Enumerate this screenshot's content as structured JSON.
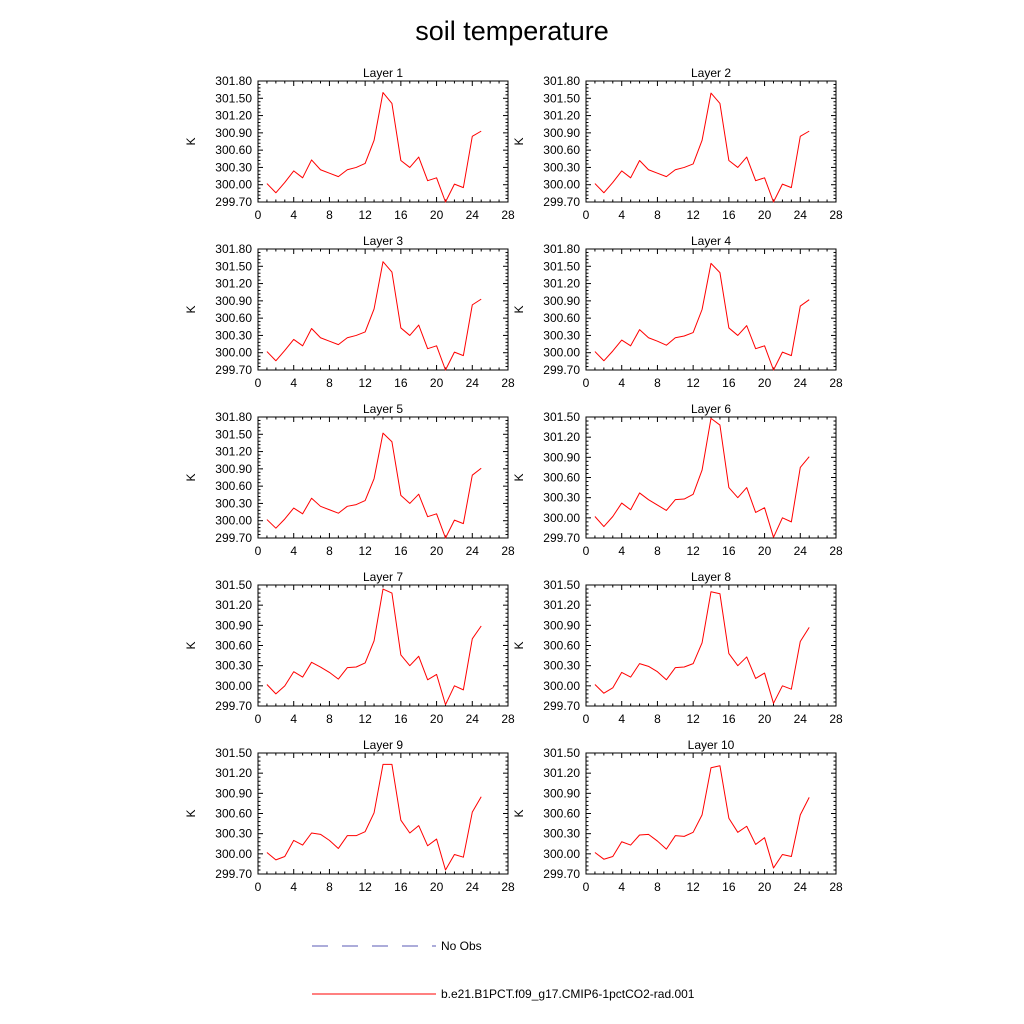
{
  "title": "soil temperature",
  "legend": [
    {
      "label": "No Obs",
      "color": "#5a5ab4",
      "dash": true
    },
    {
      "label": "b.e21.B1PCT.f09_g17.CMIP6-1pctCO2-rad.001",
      "color": "#ff0000",
      "dash": false
    }
  ],
  "chart_data": [
    {
      "type": "line",
      "title": "Layer 1",
      "ylabel": "K",
      "xlim": [
        0,
        28
      ],
      "ylim": [
        299.7,
        301.8
      ],
      "xticks": [
        "0",
        "4",
        "8",
        "12",
        "16",
        "20",
        "24",
        "28"
      ],
      "yticks": [
        "299.70",
        "300.00",
        "300.30",
        "300.60",
        "300.90",
        "301.20",
        "301.50",
        "301.80"
      ],
      "x": [
        1,
        2,
        3,
        4,
        5,
        6,
        7,
        8,
        9,
        10,
        11,
        12,
        13,
        14,
        15,
        16,
        17,
        18,
        19,
        20,
        21,
        22,
        23,
        24,
        25
      ],
      "series": [
        {
          "name": "b.e21.B1PCT.f09_g17.CMIP6-1pctCO2-rad.001",
          "values": [
            300.02,
            299.86,
            300.04,
            300.24,
            300.12,
            300.43,
            300.26,
            300.2,
            300.14,
            300.26,
            300.3,
            300.37,
            300.77,
            301.6,
            301.41,
            300.42,
            300.3,
            300.48,
            300.07,
            300.12,
            299.7,
            300.01,
            299.95,
            300.84,
            300.93
          ]
        }
      ]
    },
    {
      "type": "line",
      "title": "Layer 2",
      "ylabel": "K",
      "xlim": [
        0,
        28
      ],
      "ylim": [
        299.7,
        301.8
      ],
      "xticks": [
        "0",
        "4",
        "8",
        "12",
        "16",
        "20",
        "24",
        "28"
      ],
      "yticks": [
        "299.70",
        "300.00",
        "300.30",
        "300.60",
        "300.90",
        "301.20",
        "301.50",
        "301.80"
      ],
      "x": [
        1,
        2,
        3,
        4,
        5,
        6,
        7,
        8,
        9,
        10,
        11,
        12,
        13,
        14,
        15,
        16,
        17,
        18,
        19,
        20,
        21,
        22,
        23,
        24,
        25
      ],
      "series": [
        {
          "name": "b.e21.B1PCT.f09_g17.CMIP6-1pctCO2-rad.001",
          "values": [
            300.02,
            299.86,
            300.04,
            300.24,
            300.12,
            300.42,
            300.26,
            300.2,
            300.14,
            300.26,
            300.3,
            300.36,
            300.77,
            301.59,
            301.41,
            300.42,
            300.3,
            300.48,
            300.07,
            300.12,
            299.7,
            300.01,
            299.95,
            300.84,
            300.93
          ]
        }
      ]
    },
    {
      "type": "line",
      "title": "Layer 3",
      "ylabel": "K",
      "xlim": [
        0,
        28
      ],
      "ylim": [
        299.7,
        301.8
      ],
      "xticks": [
        "0",
        "4",
        "8",
        "12",
        "16",
        "20",
        "24",
        "28"
      ],
      "yticks": [
        "299.70",
        "300.00",
        "300.30",
        "300.60",
        "300.90",
        "301.20",
        "301.50",
        "301.80"
      ],
      "x": [
        1,
        2,
        3,
        4,
        5,
        6,
        7,
        8,
        9,
        10,
        11,
        12,
        13,
        14,
        15,
        16,
        17,
        18,
        19,
        20,
        21,
        22,
        23,
        24,
        25
      ],
      "series": [
        {
          "name": "b.e21.B1PCT.f09_g17.CMIP6-1pctCO2-rad.001",
          "values": [
            300.02,
            299.86,
            300.04,
            300.23,
            300.12,
            300.42,
            300.26,
            300.2,
            300.14,
            300.26,
            300.3,
            300.36,
            300.76,
            301.58,
            301.4,
            300.43,
            300.3,
            300.48,
            300.07,
            300.12,
            299.7,
            300.01,
            299.95,
            300.83,
            300.93
          ]
        }
      ]
    },
    {
      "type": "line",
      "title": "Layer 4",
      "ylabel": "K",
      "xlim": [
        0,
        28
      ],
      "ylim": [
        299.7,
        301.8
      ],
      "xticks": [
        "0",
        "4",
        "8",
        "12",
        "16",
        "20",
        "24",
        "28"
      ],
      "yticks": [
        "299.70",
        "300.00",
        "300.30",
        "300.60",
        "300.90",
        "301.20",
        "301.50",
        "301.80"
      ],
      "x": [
        1,
        2,
        3,
        4,
        5,
        6,
        7,
        8,
        9,
        10,
        11,
        12,
        13,
        14,
        15,
        16,
        17,
        18,
        19,
        20,
        21,
        22,
        23,
        24,
        25
      ],
      "series": [
        {
          "name": "b.e21.B1PCT.f09_g17.CMIP6-1pctCO2-rad.001",
          "values": [
            300.02,
            299.86,
            300.03,
            300.22,
            300.12,
            300.4,
            300.26,
            300.2,
            300.13,
            300.26,
            300.29,
            300.35,
            300.75,
            301.55,
            301.39,
            300.43,
            300.3,
            300.47,
            300.07,
            300.12,
            299.7,
            300.01,
            299.95,
            300.81,
            300.92
          ]
        }
      ]
    },
    {
      "type": "line",
      "title": "Layer 5",
      "ylabel": "K",
      "xlim": [
        0,
        28
      ],
      "ylim": [
        299.7,
        301.8
      ],
      "xticks": [
        "0",
        "4",
        "8",
        "12",
        "16",
        "20",
        "24",
        "28"
      ],
      "yticks": [
        "299.70",
        "300.00",
        "300.30",
        "300.60",
        "300.90",
        "301.20",
        "301.50",
        "301.80"
      ],
      "x": [
        1,
        2,
        3,
        4,
        5,
        6,
        7,
        8,
        9,
        10,
        11,
        12,
        13,
        14,
        15,
        16,
        17,
        18,
        19,
        20,
        21,
        22,
        23,
        24,
        25
      ],
      "series": [
        {
          "name": "b.e21.B1PCT.f09_g17.CMIP6-1pctCO2-rad.001",
          "values": [
            300.02,
            299.87,
            300.03,
            300.22,
            300.12,
            300.39,
            300.25,
            300.19,
            300.13,
            300.25,
            300.28,
            300.35,
            300.73,
            301.52,
            301.37,
            300.44,
            300.3,
            300.46,
            300.07,
            300.12,
            299.7,
            300.01,
            299.95,
            300.79,
            300.91
          ]
        }
      ]
    },
    {
      "type": "line",
      "title": "Layer 6",
      "ylabel": "K",
      "xlim": [
        0,
        28
      ],
      "ylim": [
        299.7,
        301.5
      ],
      "xticks": [
        "0",
        "4",
        "8",
        "12",
        "16",
        "20",
        "24",
        "28"
      ],
      "yticks": [
        "299.70",
        "300.00",
        "300.30",
        "300.60",
        "300.90",
        "301.20",
        "301.50"
      ],
      "x": [
        1,
        2,
        3,
        4,
        5,
        6,
        7,
        8,
        9,
        10,
        11,
        12,
        13,
        14,
        15,
        16,
        17,
        18,
        19,
        20,
        21,
        22,
        23,
        24,
        25
      ],
      "series": [
        {
          "name": "b.e21.B1PCT.f09_g17.CMIP6-1pctCO2-rad.001",
          "values": [
            300.02,
            299.87,
            300.02,
            300.22,
            300.12,
            300.37,
            300.27,
            300.19,
            300.11,
            300.27,
            300.28,
            300.35,
            300.71,
            301.48,
            301.38,
            300.45,
            300.3,
            300.45,
            300.08,
            300.15,
            299.71,
            300.0,
            299.94,
            300.75,
            300.91
          ]
        }
      ]
    },
    {
      "type": "line",
      "title": "Layer 7",
      "ylabel": "K",
      "xlim": [
        0,
        28
      ],
      "ylim": [
        299.7,
        301.5
      ],
      "xticks": [
        "0",
        "4",
        "8",
        "12",
        "16",
        "20",
        "24",
        "28"
      ],
      "yticks": [
        "299.70",
        "300.00",
        "300.30",
        "300.60",
        "300.90",
        "301.20",
        "301.50"
      ],
      "x": [
        1,
        2,
        3,
        4,
        5,
        6,
        7,
        8,
        9,
        10,
        11,
        12,
        13,
        14,
        15,
        16,
        17,
        18,
        19,
        20,
        21,
        22,
        23,
        24,
        25
      ],
      "series": [
        {
          "name": "b.e21.B1PCT.f09_g17.CMIP6-1pctCO2-rad.001",
          "values": [
            300.02,
            299.88,
            300.0,
            300.21,
            300.13,
            300.35,
            300.28,
            300.2,
            300.1,
            300.27,
            300.28,
            300.34,
            300.67,
            301.44,
            301.38,
            300.46,
            300.3,
            300.44,
            300.09,
            300.17,
            299.72,
            300.0,
            299.94,
            300.7,
            300.89
          ]
        }
      ]
    },
    {
      "type": "line",
      "title": "Layer 8",
      "ylabel": "K",
      "xlim": [
        0,
        28
      ],
      "ylim": [
        299.7,
        301.5
      ],
      "xticks": [
        "0",
        "4",
        "8",
        "12",
        "16",
        "20",
        "24",
        "28"
      ],
      "yticks": [
        "299.70",
        "300.00",
        "300.30",
        "300.60",
        "300.90",
        "301.20",
        "301.50"
      ],
      "x": [
        1,
        2,
        3,
        4,
        5,
        6,
        7,
        8,
        9,
        10,
        11,
        12,
        13,
        14,
        15,
        16,
        17,
        18,
        19,
        20,
        21,
        22,
        23,
        24,
        25
      ],
      "series": [
        {
          "name": "b.e21.B1PCT.f09_g17.CMIP6-1pctCO2-rad.001",
          "values": [
            300.02,
            299.89,
            299.97,
            300.2,
            300.13,
            300.33,
            300.29,
            300.21,
            300.09,
            300.27,
            300.28,
            300.33,
            300.64,
            301.4,
            301.37,
            300.48,
            300.3,
            300.43,
            300.11,
            300.19,
            299.74,
            300.0,
            299.95,
            300.66,
            300.87
          ]
        }
      ]
    },
    {
      "type": "line",
      "title": "Layer 9",
      "ylabel": "K",
      "xlim": [
        0,
        28
      ],
      "ylim": [
        299.7,
        301.5
      ],
      "xticks": [
        "0",
        "4",
        "8",
        "12",
        "16",
        "20",
        "24",
        "28"
      ],
      "yticks": [
        "299.70",
        "300.00",
        "300.30",
        "300.60",
        "300.90",
        "301.20",
        "301.50"
      ],
      "x": [
        1,
        2,
        3,
        4,
        5,
        6,
        7,
        8,
        9,
        10,
        11,
        12,
        13,
        14,
        15,
        16,
        17,
        18,
        19,
        20,
        21,
        22,
        23,
        24,
        25
      ],
      "series": [
        {
          "name": "b.e21.B1PCT.f09_g17.CMIP6-1pctCO2-rad.001",
          "values": [
            300.02,
            299.91,
            299.96,
            300.2,
            300.13,
            300.31,
            300.29,
            300.2,
            300.08,
            300.27,
            300.27,
            300.33,
            300.61,
            301.33,
            301.33,
            300.5,
            300.31,
            300.42,
            300.12,
            300.22,
            299.76,
            299.99,
            299.95,
            300.62,
            300.85
          ]
        }
      ]
    },
    {
      "type": "line",
      "title": "Layer 10",
      "ylabel": "K",
      "xlim": [
        0,
        28
      ],
      "ylim": [
        299.7,
        301.5
      ],
      "xticks": [
        "0",
        "4",
        "8",
        "12",
        "16",
        "20",
        "24",
        "28"
      ],
      "yticks": [
        "299.70",
        "300.00",
        "300.30",
        "300.60",
        "300.90",
        "301.20",
        "301.50"
      ],
      "x": [
        1,
        2,
        3,
        4,
        5,
        6,
        7,
        8,
        9,
        10,
        11,
        12,
        13,
        14,
        15,
        16,
        17,
        18,
        19,
        20,
        21,
        22,
        23,
        24,
        25
      ],
      "series": [
        {
          "name": "b.e21.B1PCT.f09_g17.CMIP6-1pctCO2-rad.001",
          "values": [
            300.02,
            299.92,
            299.96,
            300.18,
            300.13,
            300.28,
            300.29,
            300.19,
            300.07,
            300.27,
            300.26,
            300.32,
            300.58,
            301.28,
            301.31,
            300.53,
            300.32,
            300.41,
            300.14,
            300.24,
            299.79,
            299.99,
            299.96,
            300.58,
            300.84
          ]
        }
      ]
    }
  ]
}
